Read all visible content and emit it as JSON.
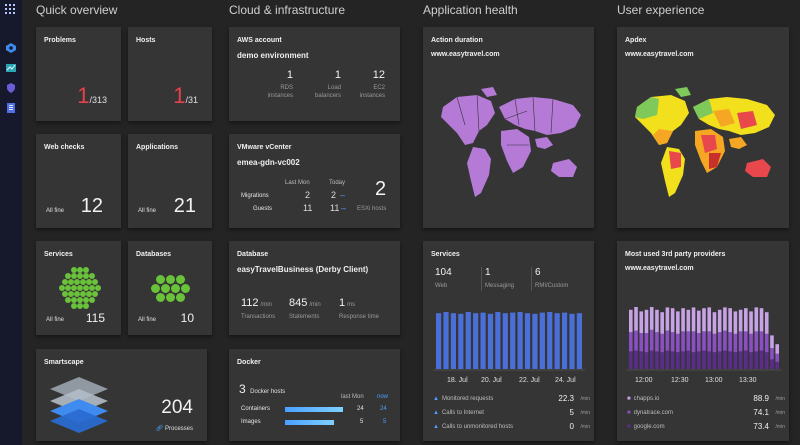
{
  "sections": {
    "quick_overview": "Quick overview",
    "cloud": "Cloud & infrastructure",
    "app_health": "Application health",
    "user_exp": "User experience"
  },
  "problems": {
    "title": "Problems",
    "count": "1",
    "total": "/313"
  },
  "hosts": {
    "title": "Hosts",
    "count": "1",
    "total": "/31"
  },
  "web_checks": {
    "title": "Web checks",
    "status": "All fine",
    "value": "12"
  },
  "applications": {
    "title": "Applications",
    "status": "All fine",
    "value": "21"
  },
  "services_tile": {
    "title": "Services",
    "status": "All fine",
    "value": "115"
  },
  "databases_tile": {
    "title": "Databases",
    "status": "All fine",
    "value": "10"
  },
  "smartscape": {
    "title": "Smartscape",
    "value": "204",
    "label": "Processes"
  },
  "aws": {
    "title": "AWS account",
    "subtitle": "demo environment",
    "stats": [
      {
        "value": "1",
        "label1": "RDS",
        "label2": "instances"
      },
      {
        "value": "1",
        "label1": "Load",
        "label2": "balancers"
      },
      {
        "value": "12",
        "label1": "EC2",
        "label2": "instances"
      }
    ]
  },
  "vmware": {
    "title": "VMware vCenter",
    "subtitle": "emea-gdn-vc002",
    "col_last": "Last Mon",
    "col_today": "Today",
    "rows": [
      {
        "label": "Migrations",
        "last": "2",
        "today": "2"
      },
      {
        "label": "Guests",
        "last": "11",
        "today": "11"
      }
    ],
    "esxi_value": "2",
    "esxi_label": "ESXi hosts"
  },
  "database": {
    "title": "Database",
    "subtitle": "easyTravelBusiness (Derby Client)",
    "stats": [
      {
        "value": "112",
        "unit": "/min",
        "label": "Transactions"
      },
      {
        "value": "845",
        "unit": "/min",
        "label": "Statements"
      },
      {
        "value": "1",
        "unit": "ms",
        "label": "Response time"
      }
    ]
  },
  "docker": {
    "title": "Docker",
    "hosts_value": "3",
    "hosts_label": "Docker hosts",
    "col_last": "last Mon",
    "col_now": "now",
    "rows": [
      {
        "label": "Containers",
        "last": "24",
        "now": "24",
        "fill": 1.0
      },
      {
        "label": "Images",
        "last": "5",
        "now": "5",
        "fill": 0.85
      }
    ]
  },
  "action_duration": {
    "title": "Action duration",
    "subtitle": "www.easytravel.com"
  },
  "apdex": {
    "title": "Apdex",
    "subtitle": "www.easytravel.com"
  },
  "services_chart": {
    "title": "Services",
    "stats": [
      {
        "value": "104",
        "label": "Web"
      },
      {
        "value": "1",
        "label": "Messaging"
      },
      {
        "value": "6",
        "label": "RMI/Custom"
      }
    ],
    "x_labels": [
      "18. Jul",
      "20. Jul",
      "22. Jul",
      "24. Jul"
    ],
    "legend": [
      {
        "label": "Monitored requests",
        "value": "22.3",
        "unit": "/min"
      },
      {
        "label": "Calls to Internet",
        "value": "5",
        "unit": "/min"
      },
      {
        "label": "Calls to unmonitored hosts",
        "value": "0",
        "unit": "/min"
      }
    ]
  },
  "third_party": {
    "title": "Most used 3rd party providers",
    "subtitle": "www.easytravel.com",
    "x_labels": [
      "12:00",
      "12:30",
      "13:00",
      "13:30"
    ],
    "legend": [
      {
        "label": "chapps.io",
        "value": "88.9",
        "unit": "/min"
      },
      {
        "label": "dynatrace.com",
        "value": "74.1",
        "unit": "/min"
      },
      {
        "label": "google.com",
        "value": "73.4",
        "unit": "/min"
      }
    ]
  },
  "chart_data": [
    {
      "type": "bar",
      "categories": [
        "",
        "",
        "",
        "",
        "",
        "",
        "",
        "",
        "",
        "",
        "",
        "",
        "",
        "",
        "",
        "",
        "",
        "",
        "",
        ""
      ],
      "values": [
        0.93,
        0.95,
        0.93,
        0.92,
        0.95,
        0.93,
        0.94,
        0.92,
        0.95,
        0.93,
        0.94,
        0.95,
        0.93,
        0.92,
        0.94,
        0.95,
        0.93,
        0.94,
        0.92,
        0.93
      ],
      "x_tick_labels": [
        "18. Jul",
        "20. Jul",
        "22. Jul",
        "24. Jul"
      ],
      "color": "#4a6fd8"
    },
    {
      "type": "bar",
      "series": [
        {
          "name": "chapps.io",
          "values": [
            0.28,
            0.3,
            0.27,
            0.29,
            0.3,
            0.28,
            0.27,
            0.29,
            0.3,
            0.28,
            0.29,
            0.27,
            0.3,
            0.28,
            0.29,
            0.3,
            0.27,
            0.28,
            0.29,
            0.3,
            0.28,
            0.27,
            0.29,
            0.28,
            0.3,
            0.29,
            0.27,
            0.16,
            0.12
          ]
        },
        {
          "name": "dynatrace.com",
          "values": [
            0.24,
            0.25,
            0.23,
            0.24,
            0.26,
            0.24,
            0.23,
            0.25,
            0.24,
            0.23,
            0.25,
            0.24,
            0.26,
            0.23,
            0.24,
            0.25,
            0.23,
            0.24,
            0.25,
            0.24,
            0.23,
            0.25,
            0.24,
            0.23,
            0.25,
            0.24,
            0.23,
            0.14,
            0.1
          ]
        },
        {
          "name": "google.com",
          "values": [
            0.22,
            0.23,
            0.22,
            0.21,
            0.23,
            0.22,
            0.21,
            0.23,
            0.22,
            0.21,
            0.22,
            0.23,
            0.21,
            0.22,
            0.23,
            0.22,
            0.21,
            0.22,
            0.23,
            0.22,
            0.21,
            0.22,
            0.23,
            0.21,
            0.22,
            0.23,
            0.21,
            0.12,
            0.09
          ]
        }
      ],
      "x_tick_labels": [
        "12:00",
        "12:30",
        "13:00",
        "13:30"
      ]
    }
  ],
  "colors": {
    "accent_blue": "#4aa0ff",
    "problem_red": "#e8424c",
    "hex_green": "#6ac23a",
    "bar_blue": "#4a6fd8",
    "purple_light": "#c7a3e6",
    "purple_mid": "#8a4fc2",
    "purple_dark": "#5a2d8a"
  }
}
